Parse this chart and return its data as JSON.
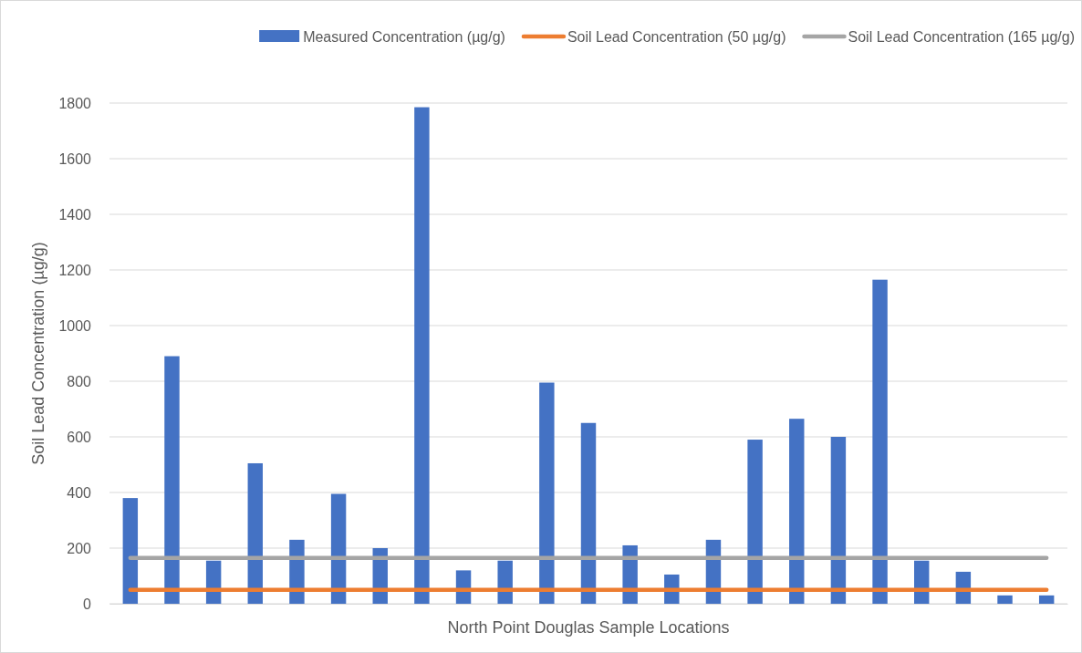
{
  "chart_data": {
    "type": "bar",
    "xlabel": "North Point Douglas Sample Locations",
    "ylabel": "Soil Lead Concentration (µg/g)",
    "categories": [
      null,
      null,
      null,
      null,
      null,
      null,
      null,
      null,
      null,
      null,
      null,
      null,
      null,
      null,
      null,
      null,
      null,
      null,
      null,
      null,
      null,
      null,
      null
    ],
    "series": [
      {
        "name": "Measured Concentration (µg/g)",
        "color": "#4472c4",
        "values": [
          380,
          890,
          155,
          505,
          230,
          395,
          200,
          1785,
          120,
          155,
          795,
          650,
          210,
          105,
          230,
          590,
          665,
          600,
          1165,
          155,
          115,
          30,
          30
        ]
      },
      {
        "name": "Soil Lead Concentration (50 µg/g)",
        "type": "line",
        "color": "#ed7d31",
        "values": [
          50,
          50,
          50,
          50,
          50,
          50,
          50,
          50,
          50,
          50,
          50,
          50,
          50,
          50,
          50,
          50,
          50,
          50,
          50,
          50,
          50,
          50,
          50
        ]
      },
      {
        "name": "Soil Lead Concentration (165 µg/g)",
        "type": "line",
        "color": "#a5a5a5",
        "values": [
          165,
          165,
          165,
          165,
          165,
          165,
          165,
          165,
          165,
          165,
          165,
          165,
          165,
          165,
          165,
          165,
          165,
          165,
          165,
          165,
          165,
          165,
          165
        ]
      }
    ],
    "ylim": [
      0,
      1800
    ],
    "yticks": [
      0,
      200,
      400,
      600,
      800,
      1000,
      1200,
      1400,
      1600,
      1800
    ],
    "grid": "y",
    "legend": "top right",
    "marker": "none",
    "line_style": "solid"
  }
}
